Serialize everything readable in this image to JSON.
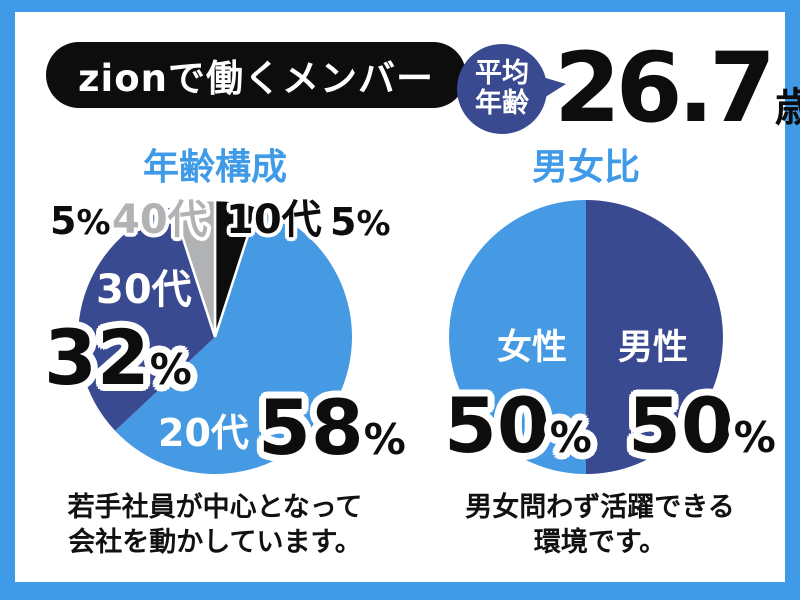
{
  "page": {
    "title": "zionで働くメンバー"
  },
  "theme": {
    "accent_blue": "#3F9AE8",
    "dark_blue": "#3A4A91",
    "light_blue": "#459AE3",
    "gray": "#B0B2B4",
    "black": "#0D0D0D"
  },
  "average_age": {
    "bubble_line1": "平均",
    "bubble_line2": "年齢",
    "value": "26.7",
    "unit": "歳"
  },
  "age_section": {
    "heading": "年齢構成",
    "caption_line1": "若手社員が中心となって",
    "caption_line2": "会社を動かしています。",
    "labels": {
      "teens": {
        "name": "10代",
        "value": "5",
        "unit": "%"
      },
      "twenties": {
        "name": "20代",
        "value": "58",
        "unit": "%"
      },
      "thirties": {
        "name": "30代",
        "value": "32",
        "unit": "%"
      },
      "forties": {
        "name": "40代",
        "value": "5",
        "unit": "%"
      }
    }
  },
  "gender_section": {
    "heading": "男女比",
    "caption_line1": "男女問わず活躍できる",
    "caption_line2": "環境です。",
    "labels": {
      "female": {
        "name": "女性",
        "value": "50",
        "unit": "%"
      },
      "male": {
        "name": "男性",
        "value": "50",
        "unit": "%"
      }
    }
  },
  "chart_data": [
    {
      "type": "pie",
      "title": "年齢構成",
      "categories": [
        "10代",
        "20代",
        "30代",
        "40代"
      ],
      "values": [
        5,
        58,
        32,
        5
      ],
      "labels_pct": [
        "5%",
        "58%",
        "32%",
        "5%"
      ],
      "colors": [
        "#0D0D0D",
        "#459AE3",
        "#3A4A91",
        "#B0B2B4"
      ],
      "start_angle_deg": 0,
      "direction": "clockwise",
      "legend_position": "none"
    },
    {
      "type": "pie",
      "title": "男女比",
      "categories": [
        "男性",
        "女性"
      ],
      "values": [
        50,
        50
      ],
      "labels_pct": [
        "50%",
        "50%"
      ],
      "colors": [
        "#3A4A91",
        "#459AE3"
      ],
      "start_angle_deg": 0,
      "direction": "clockwise",
      "legend_position": "none"
    }
  ]
}
